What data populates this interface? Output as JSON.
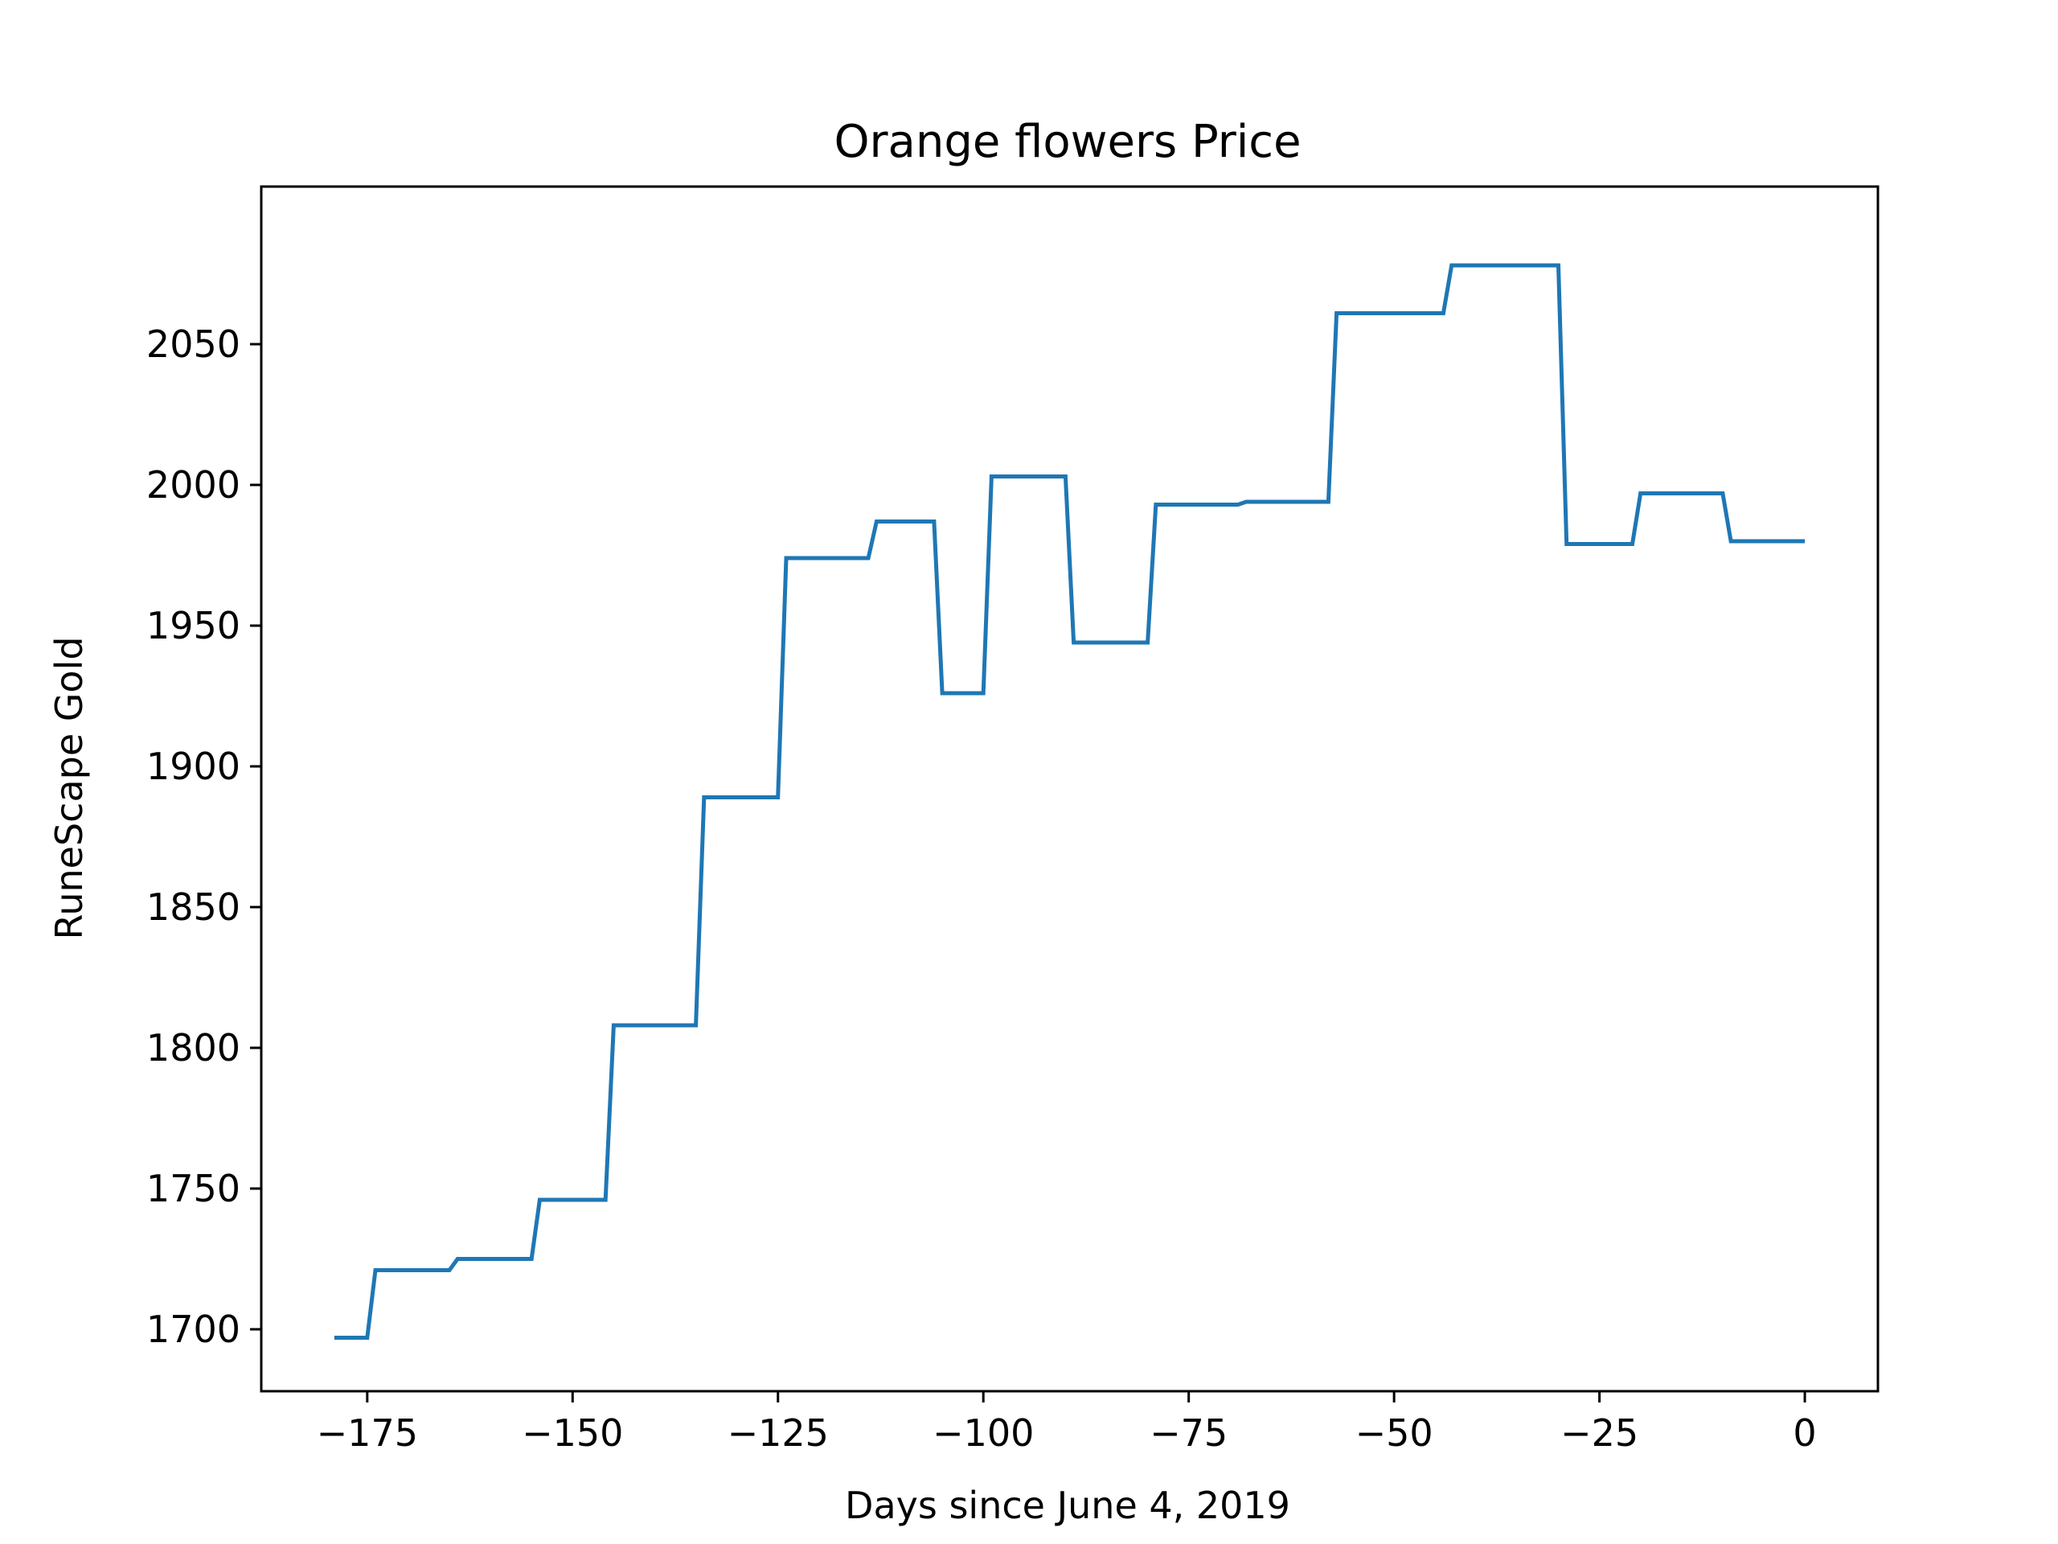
{
  "chart_data": {
    "type": "line",
    "title": "Orange flowers Price",
    "xlabel": "Days since June 4, 2019",
    "ylabel": "RuneScape Gold",
    "xlim": [
      -187.9,
      8.9
    ],
    "ylim": [
      1678,
      2106
    ],
    "xticks": [
      -175,
      -150,
      -125,
      -100,
      -75,
      -50,
      -25,
      0
    ],
    "xtick_labels": [
      "−175",
      "−150",
      "−125",
      "−100",
      "−75",
      "−50",
      "−25",
      "0"
    ],
    "yticks": [
      1700,
      1750,
      1800,
      1850,
      1900,
      1950,
      2000,
      2050
    ],
    "ytick_labels": [
      "1700",
      "1750",
      "1800",
      "1850",
      "1900",
      "1950",
      "2000",
      "2050"
    ],
    "grid": false,
    "series": [
      {
        "color": "#1f77b4",
        "points": [
          [
            -179,
            1697
          ],
          [
            -175,
            1697
          ],
          [
            -174,
            1721
          ],
          [
            -165,
            1721
          ],
          [
            -164,
            1725
          ],
          [
            -155,
            1725
          ],
          [
            -154,
            1746
          ],
          [
            -146,
            1746
          ],
          [
            -145,
            1808
          ],
          [
            -135,
            1808
          ],
          [
            -134,
            1889
          ],
          [
            -125,
            1889
          ],
          [
            -124,
            1974
          ],
          [
            -114,
            1974
          ],
          [
            -113,
            1987
          ],
          [
            -106,
            1987
          ],
          [
            -105,
            1926
          ],
          [
            -100,
            1926
          ],
          [
            -99,
            2003
          ],
          [
            -90,
            2003
          ],
          [
            -89,
            1944
          ],
          [
            -80,
            1944
          ],
          [
            -79,
            1993
          ],
          [
            -69,
            1993
          ],
          [
            -68,
            1994
          ],
          [
            -58,
            1994
          ],
          [
            -57,
            2061
          ],
          [
            -44,
            2061
          ],
          [
            -43,
            2078
          ],
          [
            -30,
            2078
          ],
          [
            -29,
            1979
          ],
          [
            -21,
            1979
          ],
          [
            -20,
            1997
          ],
          [
            -10,
            1997
          ],
          [
            -9,
            1980
          ],
          [
            0,
            1980
          ]
        ]
      }
    ]
  }
}
